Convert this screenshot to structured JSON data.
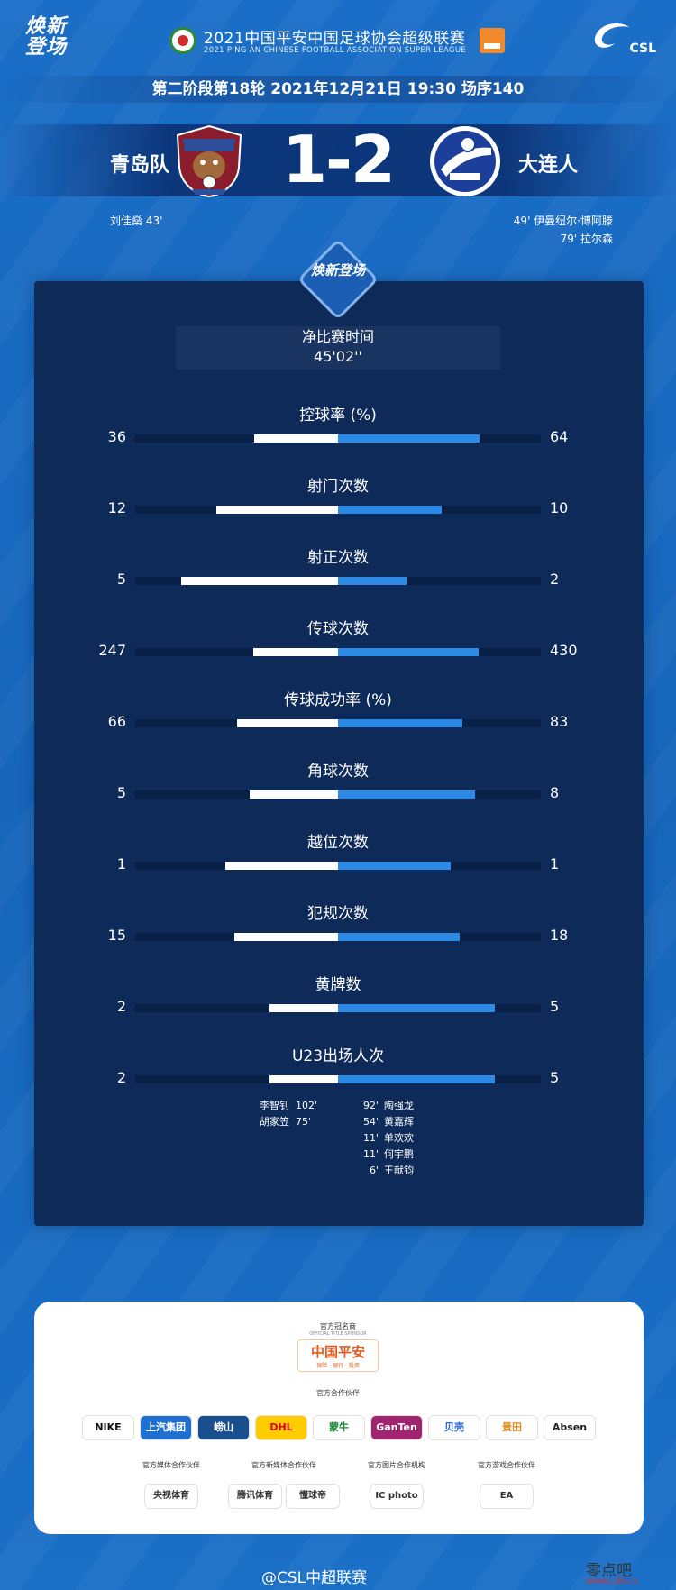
{
  "header": {
    "left_logo_text": "焕新登场",
    "league_title": "2021中国平安中国足球协会超级联赛",
    "league_subtitle": "2021 PING AN CHINESE FOOTBALL ASSOCIATION SUPER LEAGUE",
    "right_logo_text": "CSL",
    "round_info": "第二阶段第18轮  2021年12月21日 19:30 场序140"
  },
  "match": {
    "home_team": "青岛队",
    "away_team": "大连人",
    "score": "1-2",
    "home_scorers": [
      "刘佳燊  43'"
    ],
    "away_scorers": [
      "49'  伊曼纽尔·博阿滕",
      "79'  拉尔森"
    ],
    "home_color": "#ffffff",
    "away_color": "#2b8ae6"
  },
  "panel": {
    "badge_text": "焕新登场",
    "net_time_label": "净比赛时间",
    "net_time_value": "45'02''"
  },
  "stats": [
    {
      "label": "控球率 (%)",
      "home": 36,
      "away": 64
    },
    {
      "label": "射门次数",
      "home": 12,
      "away": 10
    },
    {
      "label": "射正次数",
      "home": 5,
      "away": 2
    },
    {
      "label": "传球次数",
      "home": 247,
      "away": 430
    },
    {
      "label": "传球成功率 (%)",
      "home": 66,
      "away": 83
    },
    {
      "label": "角球次数",
      "home": 5,
      "away": 8
    },
    {
      "label": "越位次数",
      "home": 1,
      "away": 1
    },
    {
      "label": "犯规次数",
      "home": 15,
      "away": 18
    },
    {
      "label": "黄牌数",
      "home": 2,
      "away": 5
    },
    {
      "label": "U23出场人次",
      "home": 2,
      "away": 5
    }
  ],
  "u23": {
    "home": [
      {
        "name": "李智钊",
        "minute": "102'"
      },
      {
        "name": "胡家笠",
        "minute": "75'"
      }
    ],
    "away": [
      {
        "minute": "92'",
        "name": "陶强龙"
      },
      {
        "minute": "54'",
        "name": "黄嘉辉"
      },
      {
        "minute": "11'",
        "name": "单欢欢"
      },
      {
        "minute": "11'",
        "name": "何宇鹏"
      },
      {
        "minute": "6'",
        "name": "王献钧"
      }
    ]
  },
  "sponsors": {
    "title_label": "官方冠名商",
    "title_label_en": "OFFICIAL TITLE SPONSOR",
    "title_sponsor": "中国平安",
    "title_sponsor_sub": "保险 · 银行 · 投资",
    "partners_label": "官方合作伙伴",
    "partners": [
      {
        "name": "NIKE",
        "color": "#111111",
        "bg": "#ffffff"
      },
      {
        "name": "上汽集团",
        "color": "#ffffff",
        "bg": "#1e6fd0"
      },
      {
        "name": "崂山",
        "color": "#ffffff",
        "bg": "#1a4f8d"
      },
      {
        "name": "DHL",
        "color": "#d40511",
        "bg": "#ffcc00"
      },
      {
        "name": "蒙牛",
        "color": "#1b8a3a",
        "bg": "#ffffff"
      },
      {
        "name": "GanTen",
        "color": "#ffffff",
        "bg": "#a0246e"
      },
      {
        "name": "贝壳",
        "color": "#2a6ad6",
        "bg": "#ffffff"
      },
      {
        "name": "景田",
        "color": "#e38a1c",
        "bg": "#ffffff"
      },
      {
        "name": "Absen",
        "color": "#222222",
        "bg": "#ffffff"
      }
    ],
    "media_groups": [
      {
        "label": "官方媒体合作伙伴",
        "logos": [
          "央视体育"
        ]
      },
      {
        "label": "官方新媒体合作伙伴",
        "logos": [
          "腾讯体育",
          "懂球帝"
        ]
      },
      {
        "label": "官方图片合作机构",
        "logos": [
          "IC photo"
        ]
      },
      {
        "label": "官方游戏合作伙伴",
        "logos": [
          "EA"
        ]
      }
    ]
  },
  "footer": {
    "weibo": "@CSL中超联赛",
    "watermark": "零点吧",
    "watermark_url": "www.Ldb.cc"
  }
}
